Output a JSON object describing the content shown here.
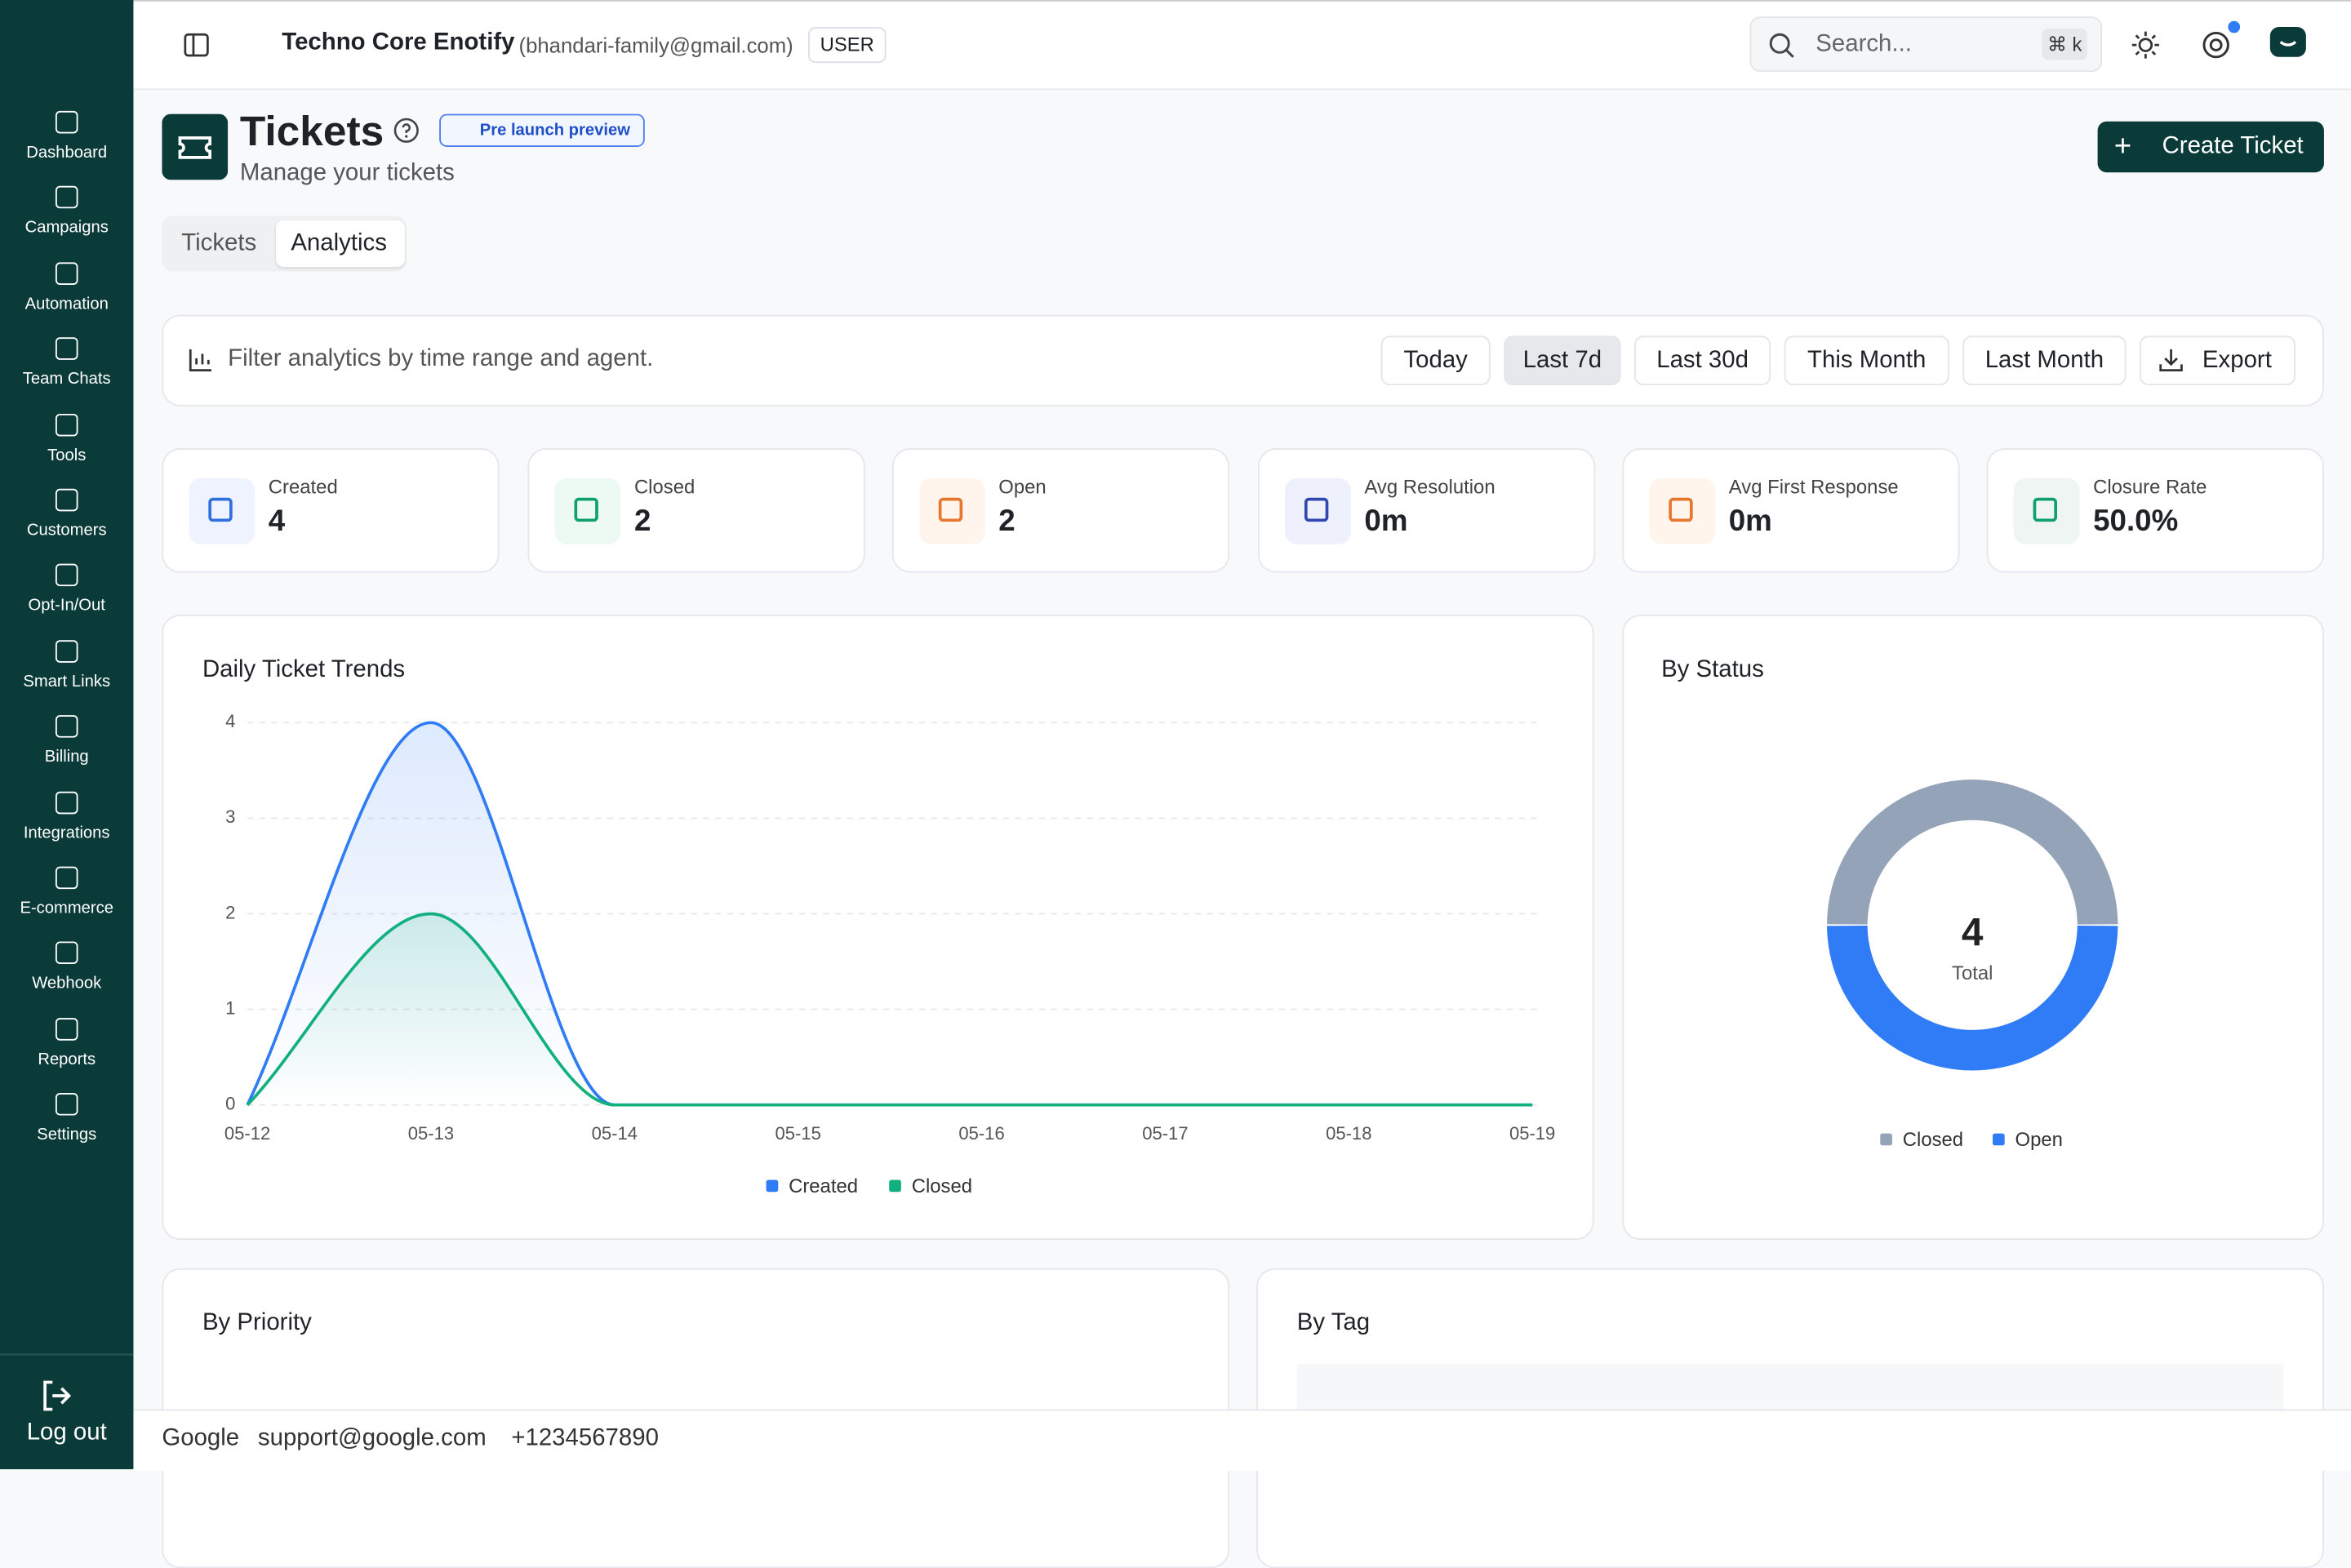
{
  "header": {
    "org": "Techno Core Enotify",
    "email": "(bhandari-family@gmail.com)",
    "role": "USER",
    "search_placeholder": "Search...",
    "shortcut": "⌘ k"
  },
  "sidebar": {
    "items": [
      "Dashboard",
      "Campaigns",
      "Automation",
      "Team Chats",
      "Tools",
      "Customers",
      "Opt-In/Out",
      "Smart Links",
      "Billing",
      "Integrations",
      "E-commerce",
      "Webhook",
      "Reports",
      "Settings"
    ],
    "logout": "Log out"
  },
  "page": {
    "title": "Tickets",
    "badge": "Pre launch preview",
    "subtitle": "Manage your tickets",
    "create_button": "Create Ticket",
    "tabs": [
      "Tickets",
      "Analytics"
    ],
    "active_tab": 1
  },
  "filters": {
    "hint": "Filter analytics by time range and agent.",
    "ranges": [
      "Today",
      "Last 7d",
      "Last 30d",
      "This Month",
      "Last Month"
    ],
    "active": 1,
    "export": "Export"
  },
  "stats": [
    {
      "label": "Created",
      "value": 4,
      "color": "#2f6fe0",
      "bg": "#eef3ff"
    },
    {
      "label": "Closed",
      "value": 2,
      "color": "#10a070",
      "bg": "#ecfaf3"
    },
    {
      "label": "Open",
      "value": 2,
      "color": "#e8772e",
      "bg": "#fff5ec"
    },
    {
      "label": "Avg Resolution",
      "value": "0m",
      "color": "#3048b0",
      "bg": "#eef1fb"
    },
    {
      "label": "Avg First Response",
      "value": "0m",
      "color": "#e8772e",
      "bg": "#fff5ec"
    },
    {
      "label": "Closure Rate",
      "value": "50.0%",
      "color": "#10a070",
      "bg": "#eef5f2"
    }
  ],
  "panels": {
    "priority": "By Priority",
    "tag": "By Tag"
  },
  "footer": {
    "company": "Google",
    "email": "support@google.com",
    "phone": "+1234567890"
  },
  "chart_data": [
    {
      "type": "line",
      "title": "Daily Ticket Trends",
      "categories": [
        "05-12",
        "05-13",
        "05-14",
        "05-15",
        "05-16",
        "05-17",
        "05-18",
        "05-19"
      ],
      "series": [
        {
          "name": "Created",
          "color": "#2f7cf6",
          "values": [
            0,
            4,
            0,
            0,
            0,
            0,
            0,
            0
          ]
        },
        {
          "name": "Closed",
          "color": "#12b07f",
          "values": [
            0,
            2,
            0,
            0,
            0,
            0,
            0,
            0
          ]
        }
      ],
      "ylim": [
        0,
        4
      ],
      "yticks": [
        0,
        1,
        2,
        3,
        4
      ],
      "grid": true
    },
    {
      "type": "pie",
      "title": "By Status",
      "categories": [
        "Closed",
        "Open"
      ],
      "values": [
        2,
        2
      ],
      "colors": [
        "#94a3b8",
        "#2f7cf6"
      ],
      "center_value": 4,
      "center_label": "Total"
    }
  ]
}
